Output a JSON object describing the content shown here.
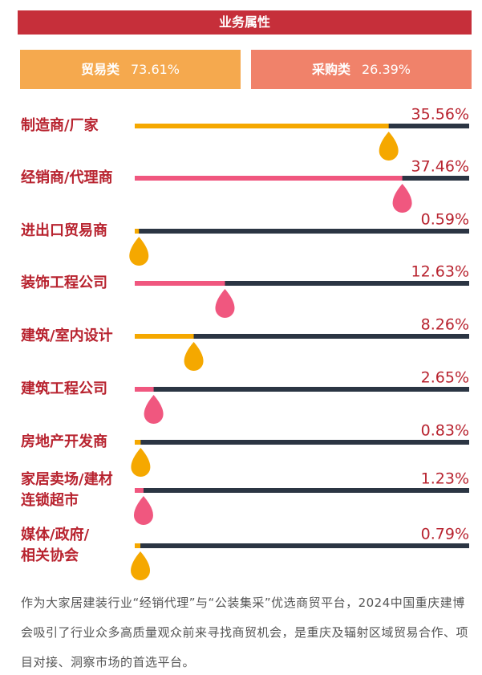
{
  "chart_data": {
    "type": "bar",
    "title": "业务属性",
    "summary": [
      {
        "label": "贸易类",
        "value_label": "73.61%",
        "color": "#f5a94e"
      },
      {
        "label": "采购类",
        "value_label": "26.39%",
        "color": "#f0826a"
      }
    ],
    "categories": [
      "制造商/厂家",
      "经销商/代理商",
      "进出口贸易商",
      "装饰工程公司",
      "建筑/室内设计",
      "建筑工程公司",
      "房地产开发商",
      "家居卖场/建材\n连锁超市",
      "媒体/政府/\n相关协会"
    ],
    "values": [
      35.56,
      37.46,
      0.59,
      12.63,
      8.26,
      2.65,
      0.83,
      1.23,
      0.79
    ],
    "value_labels": [
      "35.56%",
      "37.46%",
      "0.59%",
      "12.63%",
      "8.26%",
      "2.65%",
      "0.83%",
      "1.23%",
      "0.79%"
    ],
    "colors": [
      "#f5a800",
      "#f0577f",
      "#f5a800",
      "#f0577f",
      "#f5a800",
      "#f0577f",
      "#f5a800",
      "#f0577f",
      "#f5a800"
    ],
    "track_color": "#2b3543",
    "footnote": "作为大家居建装行业“经销代理”与“公装集采”优选商贸平台，2024中国重庆建博会吸引了行业众多高质量观众前来寻找商贸机会，是重庆及辐射区域贸易合作、项目对接、洞察市场的首选平台。"
  }
}
